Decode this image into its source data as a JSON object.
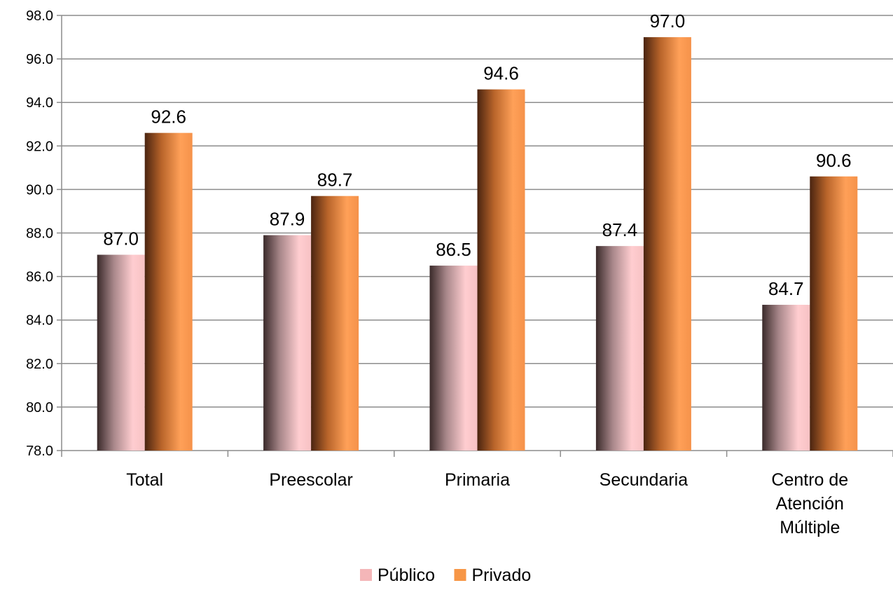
{
  "chart_data": {
    "type": "bar",
    "categories": [
      [
        "Total"
      ],
      [
        "Preescolar"
      ],
      [
        "Primaria"
      ],
      [
        "Secundaria"
      ],
      [
        "Centro de",
        "Atención",
        "Múltiple"
      ]
    ],
    "series": [
      {
        "name": "Público",
        "values": [
          87.0,
          87.9,
          86.5,
          87.4,
          84.7
        ],
        "color": "#f4b6b8"
      },
      {
        "name": "Privado",
        "values": [
          92.6,
          89.7,
          94.6,
          97.0,
          90.6
        ],
        "color": "#f79646"
      }
    ],
    "ylim": [
      78.0,
      98.0
    ],
    "ytick_step": 2.0,
    "grid": true,
    "legend": "bottom-center",
    "value_format_decimals": 1
  }
}
